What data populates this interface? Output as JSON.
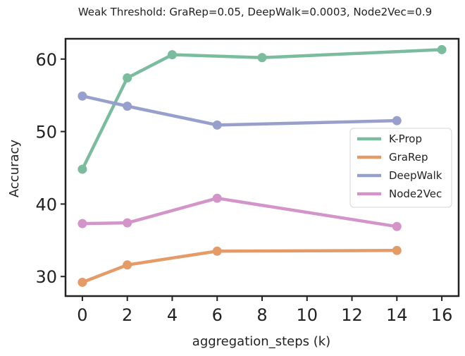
{
  "chart_data": {
    "type": "line",
    "title": "Weak Threshold: GraRep=0.05, DeepWalk=0.0003, Node2Vec=0.9",
    "xlabel": "aggregation_steps (k)",
    "ylabel": "Accuracy",
    "xlim": [
      -0.75,
      16.75
    ],
    "ylim": [
      27.3,
      62.8
    ],
    "xticks": [
      0,
      2,
      4,
      6,
      8,
      10,
      12,
      14,
      16
    ],
    "yticks": [
      30,
      40,
      50,
      60
    ],
    "grid": false,
    "legend_position": "center-right",
    "series": [
      {
        "name": "K-Prop",
        "color": "#7bbc9f",
        "x": [
          0,
          2,
          4,
          6,
          8,
          16
        ],
        "y": [
          44.8,
          57.4,
          60.6,
          null,
          60.2,
          61.3
        ]
      },
      {
        "name": "GraRep",
        "color": "#e49b68",
        "x": [
          0,
          2,
          6,
          14
        ],
        "y": [
          29.2,
          31.6,
          33.5,
          33.6
        ]
      },
      {
        "name": "DeepWalk",
        "color": "#97a0cc",
        "x": [
          0,
          2,
          6,
          14
        ],
        "y": [
          54.9,
          53.5,
          50.9,
          51.5
        ]
      },
      {
        "name": "Node2Vec",
        "color": "#d394c9",
        "x": [
          0,
          2,
          6,
          14
        ],
        "y": [
          37.3,
          37.4,
          40.8,
          36.9
        ]
      }
    ]
  }
}
